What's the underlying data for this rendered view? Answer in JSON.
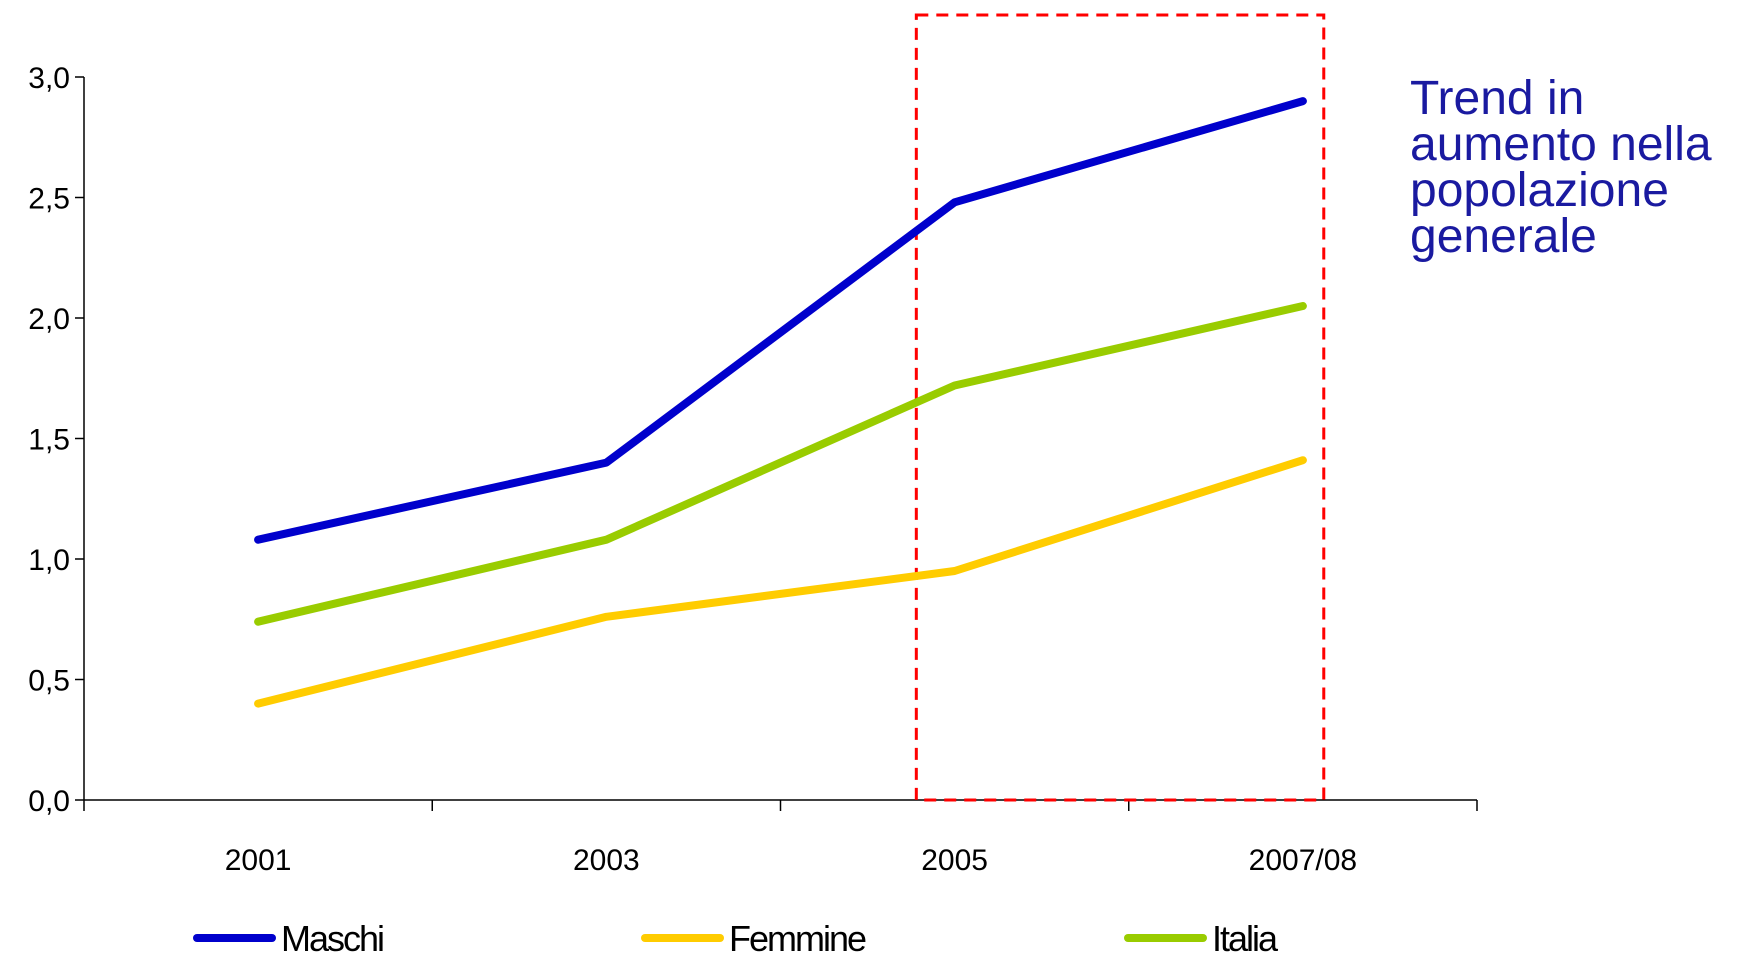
{
  "chart_data": {
    "type": "line",
    "title": "",
    "xlabel": "",
    "ylabel": "",
    "categories": [
      "2001",
      "2003",
      "2005",
      "2007/08"
    ],
    "ylim": [
      0,
      3.0
    ],
    "yticks": [
      "0,0",
      "0,5",
      "1,0",
      "1,5",
      "2,0",
      "2,5",
      "3,0"
    ],
    "grid": false,
    "legend_position": "bottom",
    "series": [
      {
        "name": "Maschi",
        "color": "#0000cc",
        "values": [
          1.08,
          1.4,
          2.48,
          2.9
        ]
      },
      {
        "name": "Femmine",
        "color": "#ffcc00",
        "values": [
          0.4,
          0.76,
          0.95,
          1.41
        ]
      },
      {
        "name": "Italia",
        "color": "#99cc00",
        "values": [
          0.74,
          1.08,
          1.72,
          2.05
        ]
      }
    ],
    "highlight": {
      "from_category": "2005",
      "to_category": "2007/08",
      "color": "#ff0000",
      "style": "dashed"
    },
    "annotation": {
      "lines": [
        "Trend in",
        "aumento nella",
        "popolazione",
        "generale"
      ],
      "color": "#1a1aa0"
    }
  }
}
